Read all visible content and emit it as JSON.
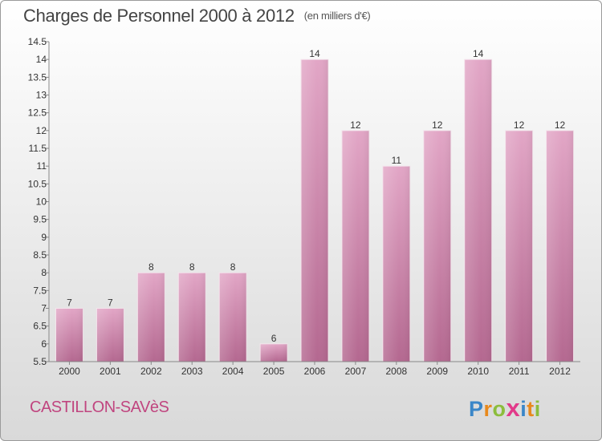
{
  "header": {
    "title": "Charges de Personnel 2000 à 2012",
    "unit": "(en milliers d'€)"
  },
  "footer": {
    "place": "CASTILLON-SAVèS",
    "logo_letters": [
      "P",
      "r",
      "o",
      "x",
      "i",
      "t",
      "i"
    ],
    "logo_colors": [
      "#3a86c8",
      "#e8891c",
      "#8cbd3c",
      "#e23a8a",
      "#3a86c8",
      "#e8891c",
      "#8cbd3c"
    ]
  },
  "chart_data": {
    "type": "bar",
    "title": "Charges de Personnel 2000 à 2012",
    "subtitle": "(en milliers d'€)",
    "categories": [
      "2000",
      "2001",
      "2002",
      "2003",
      "2004",
      "2005",
      "2006",
      "2007",
      "2008",
      "2009",
      "2010",
      "2011",
      "2012"
    ],
    "values": [
      7,
      7,
      8,
      8,
      8,
      6,
      14,
      12,
      11,
      12,
      14,
      12,
      12
    ],
    "data_labels": [
      "7",
      "7",
      "8",
      "8",
      "8",
      "6",
      "14",
      "12",
      "11",
      "12",
      "14",
      "12",
      "12"
    ],
    "ylim": [
      5.5,
      14.5
    ],
    "yticks": [
      5.5,
      6,
      6.5,
      7,
      7.5,
      8,
      8.5,
      9,
      9.5,
      10,
      10.5,
      11,
      11.5,
      12,
      12.5,
      13,
      13.5,
      14,
      14.5
    ],
    "ytick_labels": [
      "5.5",
      "6",
      "6.5",
      "7",
      "7.5",
      "8",
      "8.5",
      "9",
      "9.5",
      "10",
      "10.5",
      "11",
      "11.5",
      "12",
      "12.5",
      "13",
      "13.5",
      "14",
      "14.5"
    ],
    "bar_color": "#d88fb6",
    "grid": false
  }
}
